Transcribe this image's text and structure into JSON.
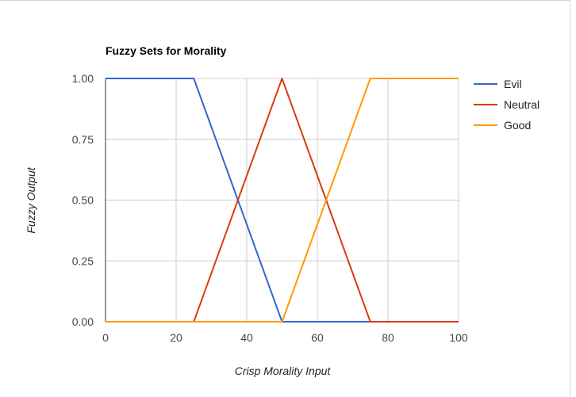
{
  "chart_data": {
    "type": "line",
    "title": "Fuzzy Sets for Morality",
    "xlabel": "Crisp Morality Input",
    "ylabel": "Fuzzy Output",
    "xlim": [
      0,
      100
    ],
    "ylim": [
      0,
      1
    ],
    "x_ticks": [
      "0",
      "20",
      "40",
      "60",
      "80",
      "100"
    ],
    "y_ticks": [
      "0.00",
      "0.25",
      "0.50",
      "0.75",
      "1.00"
    ],
    "grid": true,
    "legend_position": "right",
    "series": [
      {
        "name": "Evil",
        "color": "#3366cc",
        "x": [
          0,
          25,
          50,
          100
        ],
        "y": [
          1,
          1,
          0,
          0
        ]
      },
      {
        "name": "Neutral",
        "color": "#dc3912",
        "x": [
          0,
          25,
          50,
          75,
          100
        ],
        "y": [
          0,
          0,
          1,
          0,
          0
        ]
      },
      {
        "name": "Good",
        "color": "#ff9900",
        "x": [
          0,
          50,
          75,
          100
        ],
        "y": [
          0,
          0,
          1,
          1
        ]
      }
    ]
  }
}
